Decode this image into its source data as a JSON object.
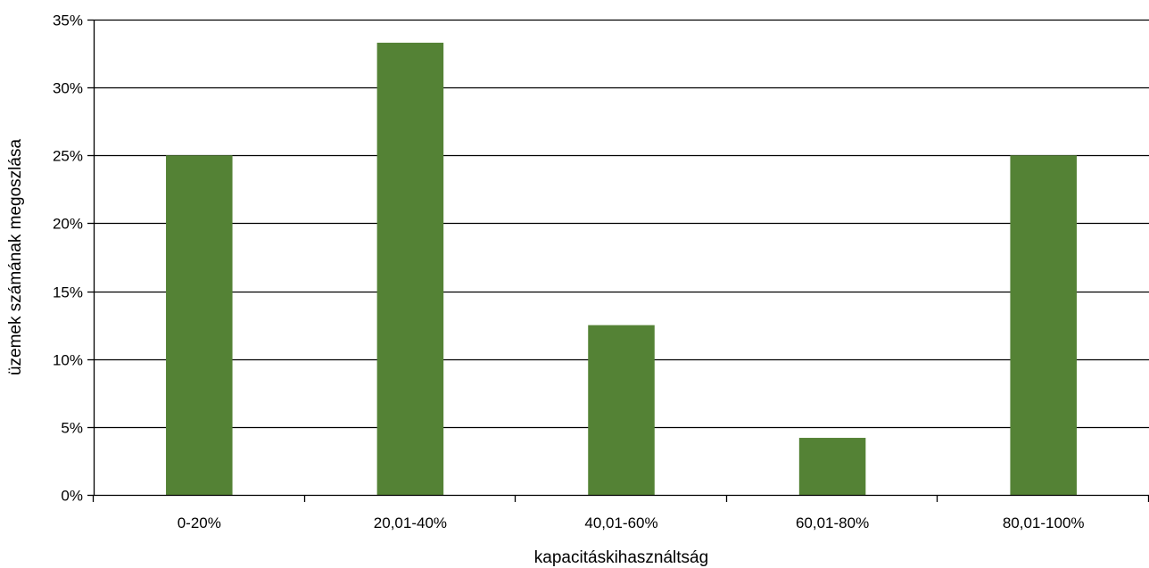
{
  "chart_data": {
    "type": "bar",
    "categories": [
      "0-20%",
      "20,01-40%",
      "40,01-60%",
      "60,01-80%",
      "80,01-100%"
    ],
    "values": [
      25.0,
      33.3,
      12.5,
      4.2,
      25.0
    ],
    "xlabel": "kapacitáskihasználtság",
    "ylabel": "üzemek számának megoszlása",
    "ylim": [
      0,
      35
    ],
    "y_ticks": [
      0,
      5,
      10,
      15,
      20,
      25,
      30,
      35
    ],
    "y_tick_format": "{v}%",
    "grid": true,
    "legend": "none",
    "colors": {
      "bar": "#548235",
      "grid": "#000000",
      "axis": "#000000"
    }
  }
}
